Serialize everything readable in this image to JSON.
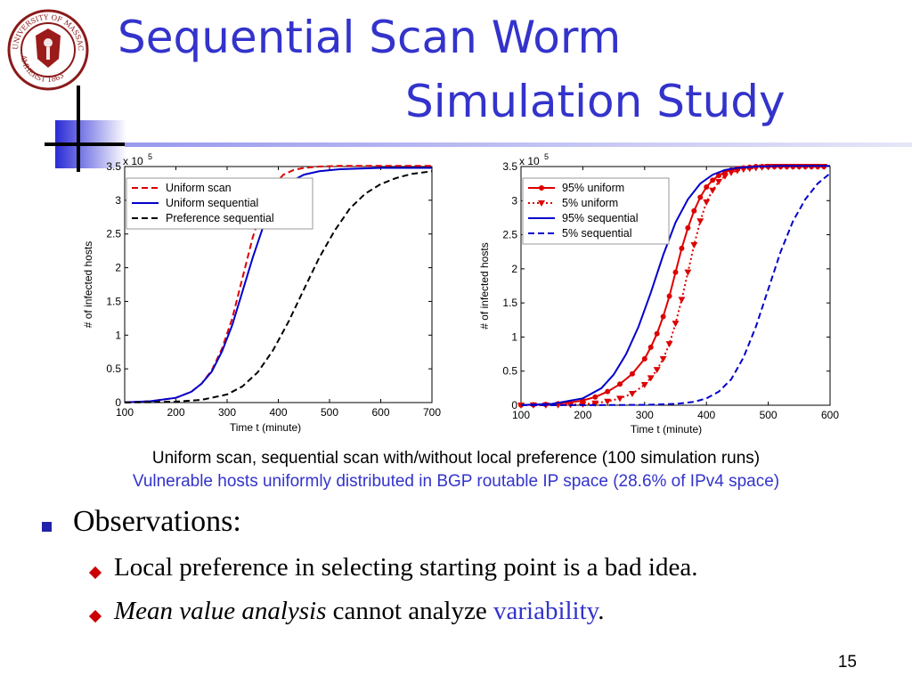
{
  "slide": {
    "title_line1": "Sequential Scan Worm",
    "title_line2": "Simulation Study",
    "caption1": "Uniform scan, sequential scan with/without local preference (100 simulation runs)",
    "caption2": "Vulnerable hosts uniformly distributed in BGP routable IP space (28.6% of IPv4 space)",
    "observations": "Observations:",
    "bullet1": "Local preference in selecting starting point is a bad idea.",
    "bullet2_italic": "Mean value analysis",
    "bullet2_mid": " cannot analyze ",
    "bullet2_blue": "variability",
    "bullet2_end": ".",
    "page_number": "15",
    "accent_color": "#3333cc"
  },
  "chart_data": [
    {
      "type": "line",
      "xlabel": "Time t (minute)",
      "ylabel": "# of infected hosts",
      "y_multiplier": "x 10",
      "y_multiplier_exp": "5",
      "xlim": [
        100,
        700
      ],
      "ylim": [
        0,
        3.5
      ],
      "xticks": [
        100,
        200,
        300,
        400,
        500,
        600,
        700
      ],
      "yticks": [
        0,
        0.5,
        1,
        1.5,
        2,
        2.5,
        3,
        3.5
      ],
      "legend_position": "top-left",
      "series": [
        {
          "name": "Uniform scan",
          "color": "#dd0000",
          "style": "dashed",
          "marker": "none",
          "x": [
            100,
            150,
            200,
            230,
            250,
            270,
            290,
            310,
            330,
            350,
            370,
            390,
            410,
            430,
            450,
            480,
            520,
            560,
            600,
            700
          ],
          "y": [
            0.004,
            0.02,
            0.07,
            0.16,
            0.28,
            0.48,
            0.8,
            1.25,
            1.85,
            2.45,
            2.92,
            3.22,
            3.38,
            3.45,
            3.48,
            3.5,
            3.51,
            3.51,
            3.51,
            3.51
          ]
        },
        {
          "name": "Uniform sequential",
          "color": "#0000cc",
          "style": "solid",
          "marker": "none",
          "x": [
            100,
            150,
            200,
            230,
            250,
            270,
            290,
            310,
            330,
            350,
            370,
            390,
            410,
            430,
            450,
            480,
            520,
            560,
            600,
            650,
            700
          ],
          "y": [
            0.004,
            0.02,
            0.07,
            0.16,
            0.28,
            0.46,
            0.76,
            1.15,
            1.65,
            2.15,
            2.6,
            2.95,
            3.18,
            3.3,
            3.38,
            3.43,
            3.46,
            3.47,
            3.48,
            3.48,
            3.48
          ]
        },
        {
          "name": "Preference sequential",
          "color": "#000000",
          "style": "dashed",
          "marker": "none",
          "x": [
            100,
            150,
            200,
            250,
            300,
            330,
            360,
            390,
            420,
            450,
            480,
            510,
            540,
            570,
            600,
            630,
            660,
            700
          ],
          "y": [
            0.001,
            0.005,
            0.015,
            0.04,
            0.12,
            0.24,
            0.45,
            0.78,
            1.2,
            1.68,
            2.15,
            2.55,
            2.88,
            3.1,
            3.24,
            3.33,
            3.39,
            3.43
          ]
        }
      ]
    },
    {
      "type": "line",
      "xlabel": "Time t (minute)",
      "ylabel": "# of infected hosts",
      "y_multiplier": "x 10",
      "y_multiplier_exp": "5",
      "xlim": [
        100,
        600
      ],
      "ylim": [
        0,
        3.5
      ],
      "xticks": [
        100,
        200,
        300,
        400,
        500,
        600
      ],
      "yticks": [
        0,
        0.5,
        1,
        1.5,
        2,
        2.5,
        3,
        3.5
      ],
      "legend_position": "top-left",
      "series": [
        {
          "name": "95% uniform",
          "color": "#dd0000",
          "style": "solid",
          "marker": "circle",
          "x": [
            100,
            120,
            140,
            160,
            180,
            200,
            220,
            240,
            260,
            280,
            300,
            310,
            320,
            330,
            340,
            350,
            360,
            370,
            380,
            390,
            400,
            410,
            420,
            430,
            440,
            450,
            460,
            470,
            480,
            490,
            500,
            510,
            520,
            530,
            540,
            550,
            560,
            570,
            580,
            590
          ],
          "y": [
            0.003,
            0.006,
            0.012,
            0.022,
            0.04,
            0.07,
            0.12,
            0.2,
            0.31,
            0.46,
            0.68,
            0.85,
            1.05,
            1.3,
            1.6,
            1.95,
            2.3,
            2.6,
            2.85,
            3.05,
            3.2,
            3.3,
            3.37,
            3.42,
            3.45,
            3.47,
            3.48,
            3.49,
            3.5,
            3.5,
            3.5,
            3.5,
            3.5,
            3.5,
            3.5,
            3.5,
            3.5,
            3.5,
            3.5,
            3.5
          ]
        },
        {
          "name": "5% uniform",
          "color": "#dd0000",
          "style": "dotted",
          "marker": "triangle",
          "x": [
            100,
            120,
            140,
            160,
            180,
            200,
            220,
            240,
            260,
            280,
            300,
            310,
            320,
            330,
            340,
            350,
            360,
            370,
            380,
            390,
            400,
            410,
            420,
            430,
            440,
            450,
            460,
            470,
            480,
            490,
            500,
            510,
            520,
            530,
            540,
            550,
            560,
            570,
            580,
            590
          ],
          "y": [
            0.0,
            0.001,
            0.002,
            0.004,
            0.008,
            0.015,
            0.03,
            0.055,
            0.1,
            0.17,
            0.3,
            0.4,
            0.52,
            0.68,
            0.9,
            1.2,
            1.55,
            1.95,
            2.35,
            2.7,
            2.98,
            3.15,
            3.28,
            3.36,
            3.41,
            3.44,
            3.46,
            3.47,
            3.48,
            3.49,
            3.5,
            3.5,
            3.5,
            3.5,
            3.5,
            3.5,
            3.5,
            3.5,
            3.5,
            3.5
          ]
        },
        {
          "name": "95% sequential",
          "color": "#0000cc",
          "style": "solid",
          "marker": "none",
          "x": [
            100,
            150,
            200,
            230,
            250,
            270,
            290,
            310,
            330,
            350,
            370,
            390,
            410,
            430,
            450,
            480,
            520,
            560,
            600
          ],
          "y": [
            0.003,
            0.02,
            0.1,
            0.25,
            0.45,
            0.75,
            1.15,
            1.65,
            2.2,
            2.68,
            3.02,
            3.25,
            3.38,
            3.45,
            3.48,
            3.5,
            3.51,
            3.51,
            3.51
          ]
        },
        {
          "name": "5% sequential",
          "color": "#0000cc",
          "style": "dashed",
          "marker": "none",
          "x": [
            100,
            200,
            300,
            350,
            380,
            400,
            420,
            440,
            460,
            480,
            500,
            520,
            540,
            560,
            580,
            600
          ],
          "y": [
            0.0,
            0.001,
            0.005,
            0.02,
            0.05,
            0.1,
            0.2,
            0.38,
            0.7,
            1.15,
            1.7,
            2.25,
            2.7,
            3.02,
            3.25,
            3.4
          ]
        }
      ]
    }
  ]
}
